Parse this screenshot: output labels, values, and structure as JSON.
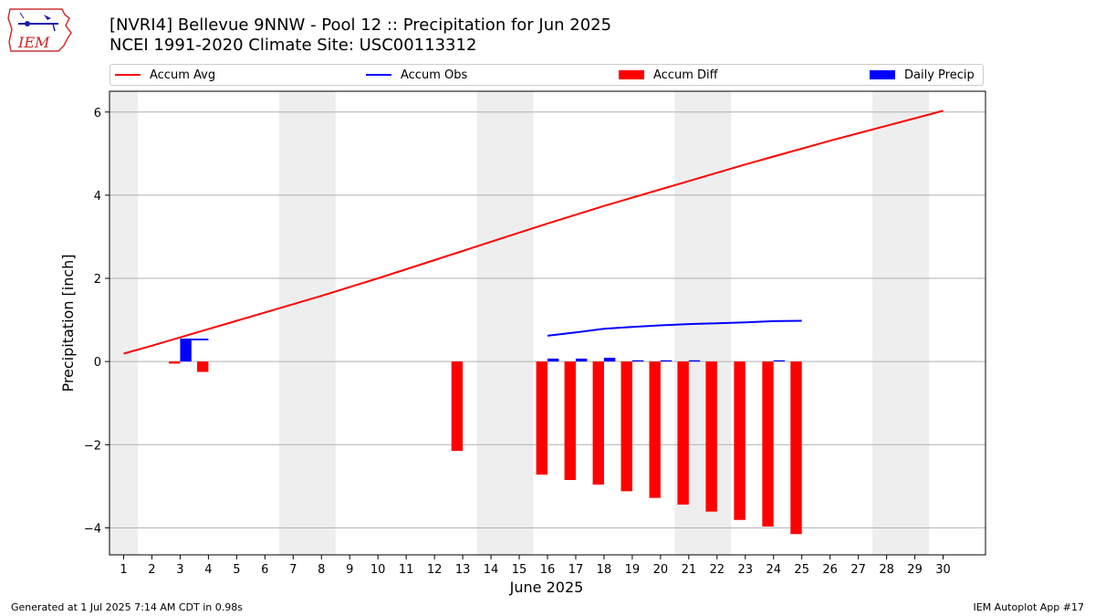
{
  "header": {
    "logo_text": "IEM",
    "title_line1": "[NVRI4] Bellevue 9NNW - Pool 12 :: Precipitation for Jun 2025",
    "title_line2": "NCEI 1991-2020 Climate Site: USC00113312"
  },
  "footer": {
    "left": "Generated at 1 Jul 2025 7:14 AM CDT in 0.98s",
    "right": "IEM Autoplot App #17"
  },
  "chart_data": {
    "type": "bar",
    "xlabel": "June 2025",
    "ylabel": "Precipitation [inch]",
    "xlim": [
      0.5,
      31.5
    ],
    "ylim": [
      -4.65,
      6.5
    ],
    "x_ticks": [
      "1",
      "2",
      "3",
      "4",
      "5",
      "6",
      "7",
      "8",
      "9",
      "10",
      "11",
      "12",
      "13",
      "14",
      "15",
      "16",
      "17",
      "18",
      "19",
      "20",
      "21",
      "22",
      "23",
      "24",
      "25",
      "26",
      "27",
      "28",
      "29",
      "30"
    ],
    "y_ticks": [
      -4,
      -2,
      0,
      2,
      4,
      6
    ],
    "y_tick_labels": [
      "−4",
      "−2",
      "0",
      "2",
      "4",
      "6"
    ],
    "grid": "horizontal",
    "weekend_shading": [
      [
        1,
        1
      ],
      [
        7,
        8
      ],
      [
        14,
        15
      ],
      [
        21,
        22
      ],
      [
        28,
        29
      ]
    ],
    "legend_position": "top",
    "series": [
      {
        "name": "Accum Avg",
        "kind": "line",
        "color": "#ff0000",
        "x": [
          1,
          2,
          3,
          4,
          5,
          6,
          7,
          8,
          9,
          10,
          11,
          12,
          13,
          14,
          15,
          16,
          17,
          18,
          19,
          20,
          21,
          22,
          23,
          24,
          25,
          26,
          27,
          28,
          29,
          30
        ],
        "values": [
          0.19,
          0.38,
          0.58,
          0.78,
          0.98,
          1.18,
          1.38,
          1.58,
          1.79,
          2.0,
          2.22,
          2.44,
          2.66,
          2.88,
          3.1,
          3.32,
          3.53,
          3.74,
          3.94,
          4.14,
          4.34,
          4.54,
          4.74,
          4.93,
          5.12,
          5.31,
          5.49,
          5.67,
          5.85,
          6.03
        ]
      },
      {
        "name": "Accum Obs",
        "kind": "line",
        "color": "#0000ff",
        "x": [
          3,
          4,
          null,
          16,
          17,
          18,
          19,
          20,
          21,
          22,
          23,
          24,
          25
        ],
        "values": [
          0.53,
          0.53,
          null,
          0.62,
          0.7,
          0.79,
          0.83,
          0.87,
          0.9,
          0.92,
          0.94,
          0.97,
          0.98
        ]
      },
      {
        "name": "Accum Diff",
        "kind": "bar",
        "color": "#ff0000",
        "x": [
          3,
          4,
          13,
          16,
          17,
          18,
          19,
          20,
          21,
          22,
          23,
          24,
          25
        ],
        "values": [
          -0.05,
          -0.25,
          -2.15,
          -2.72,
          -2.85,
          -2.96,
          -3.12,
          -3.28,
          -3.44,
          -3.61,
          -3.81,
          -3.97,
          -4.15
        ]
      },
      {
        "name": "Daily Precip",
        "kind": "bar",
        "color": "#0000ff",
        "x": [
          3,
          16,
          17,
          18,
          19,
          20,
          21,
          24
        ],
        "values": [
          0.53,
          0.07,
          0.07,
          0.09,
          0.03,
          0.03,
          0.03,
          0.03
        ]
      }
    ]
  }
}
